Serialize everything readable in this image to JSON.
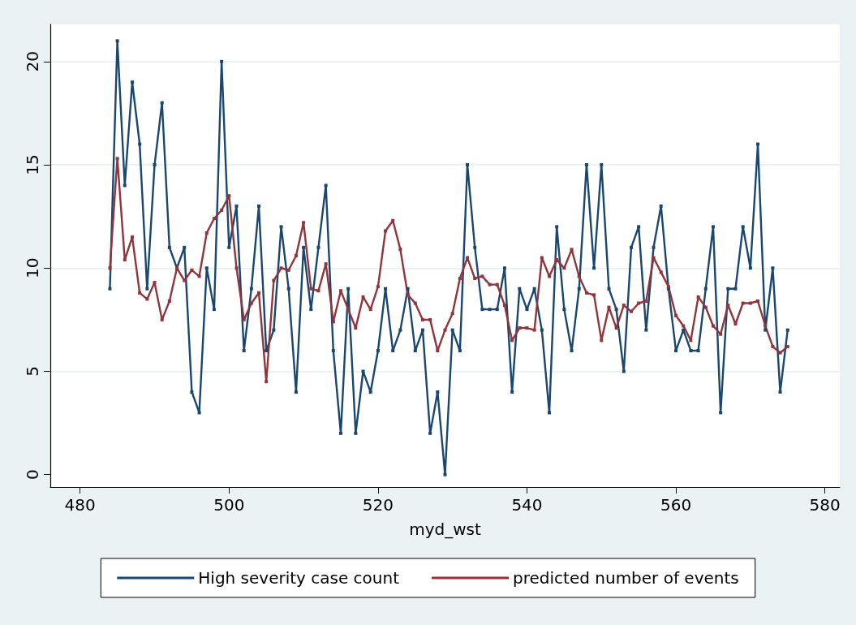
{
  "chart_data": {
    "type": "line",
    "xlabel": "myd_wst",
    "x": [
      484,
      485,
      486,
      487,
      488,
      489,
      490,
      491,
      492,
      493,
      494,
      495,
      496,
      497,
      498,
      499,
      500,
      501,
      502,
      503,
      504,
      505,
      506,
      507,
      508,
      509,
      510,
      511,
      512,
      513,
      514,
      515,
      516,
      517,
      518,
      519,
      520,
      521,
      522,
      523,
      524,
      525,
      526,
      527,
      528,
      529,
      530,
      531,
      532,
      533,
      534,
      535,
      536,
      537,
      538,
      539,
      540,
      541,
      542,
      543,
      544,
      545,
      546,
      547,
      548,
      549,
      550,
      551,
      552,
      553,
      554,
      555,
      556,
      557,
      558,
      559,
      560,
      561,
      562,
      563,
      564,
      565,
      566,
      567,
      568,
      569,
      570,
      571,
      572,
      573,
      574,
      575
    ],
    "series": [
      {
        "name": "High severity case count",
        "color": "#1a476f",
        "values": [
          9,
          21,
          14,
          19,
          16,
          9,
          15,
          18,
          11,
          10,
          11,
          4,
          3,
          10,
          8,
          20,
          11,
          13,
          6,
          9,
          13,
          6,
          7,
          12,
          9,
          4,
          11,
          8,
          11,
          14,
          6,
          2,
          9,
          2,
          5,
          4,
          6,
          9,
          6,
          7,
          9,
          6,
          7,
          2,
          4,
          0,
          7,
          6,
          15,
          11,
          8,
          8,
          8,
          10,
          4,
          9,
          8,
          9,
          7,
          3,
          12,
          8,
          6,
          9,
          15,
          10,
          15,
          9,
          8,
          5,
          11,
          12,
          7,
          11,
          13,
          9,
          6,
          7,
          6,
          6,
          9,
          12,
          3,
          9,
          9,
          12,
          10,
          16,
          7,
          10,
          4,
          7
        ]
      },
      {
        "name": "predicted number of events",
        "color": "#90353b",
        "values": [
          10.0,
          15.3,
          10.4,
          11.5,
          8.8,
          8.5,
          9.3,
          7.5,
          8.4,
          10.0,
          9.4,
          9.9,
          9.6,
          11.7,
          12.4,
          12.8,
          13.5,
          10.0,
          7.5,
          8.3,
          8.8,
          4.5,
          9.4,
          10.0,
          9.9,
          10.6,
          12.2,
          9.0,
          8.9,
          10.2,
          7.4,
          8.9,
          8.0,
          7.1,
          8.6,
          8.0,
          9.1,
          11.8,
          12.3,
          10.9,
          8.7,
          8.3,
          7.5,
          7.5,
          6.0,
          7.0,
          7.8,
          9.5,
          10.5,
          9.5,
          9.6,
          9.2,
          9.2,
          8.2,
          6.5,
          7.1,
          7.1,
          7.0,
          10.5,
          9.6,
          10.4,
          10.0,
          10.9,
          9.6,
          8.8,
          8.7,
          6.5,
          8.1,
          7.1,
          8.2,
          7.9,
          8.3,
          8.4,
          10.5,
          9.8,
          9.1,
          7.7,
          7.2,
          6.5,
          8.6,
          8.1,
          7.2,
          6.8,
          8.2,
          7.3,
          8.3,
          8.3,
          8.4,
          7.2,
          6.2,
          5.9,
          6.2
        ]
      }
    ],
    "xlim": [
      476,
      582
    ],
    "xticks": [
      480,
      500,
      520,
      540,
      560,
      580
    ],
    "ylim": [
      -0.6,
      21.8
    ],
    "yticks": [
      0,
      5,
      10,
      15,
      20
    ],
    "grid": "y",
    "legend": "bottom",
    "marker": "square",
    "line_style": "solid"
  }
}
